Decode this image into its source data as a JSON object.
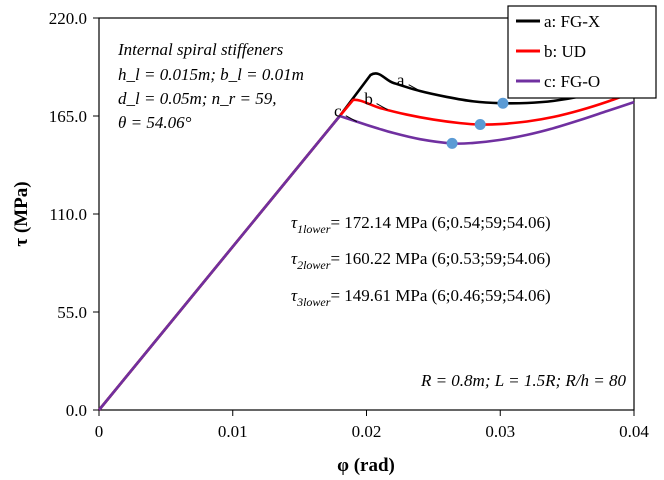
{
  "chart_data": {
    "type": "line",
    "xlabel": "φ (rad)",
    "ylabel": "τ (MPa)",
    "xlim": [
      0,
      0.04
    ],
    "ylim": [
      0,
      220
    ],
    "xticks": [
      "0",
      "0.01",
      "0.02",
      "0.03",
      "0.04"
    ],
    "yticks": [
      "0.0",
      "55.0",
      "110.0",
      "165.0",
      "220.0"
    ],
    "xtick_values": [
      0,
      0.01,
      0.02,
      0.03,
      0.04
    ],
    "ytick_values": [
      0,
      55,
      110,
      165,
      220
    ],
    "grid": false,
    "legend_position": "top-right",
    "legend": [
      "a: FG-X",
      "b: UD",
      "c: FG-O"
    ],
    "series": [
      {
        "name": "a: FG-X",
        "color": "#000000",
        "curve_label": "a",
        "x": [
          0,
          0.018,
          0.0203,
          0.022,
          0.024,
          0.026,
          0.028,
          0.03,
          0.032,
          0.034,
          0.036,
          0.038,
          0.04
        ],
        "y": [
          0,
          165.0,
          188.0,
          183.6,
          179.0,
          175.7,
          173.2,
          172.2,
          172.3,
          173.5,
          176.0,
          179.8,
          184.5
        ],
        "min_point": {
          "x": 0.0302,
          "y": 172.14
        }
      },
      {
        "name": "b: UD",
        "color": "#ff0000",
        "curve_label": "b",
        "x": [
          0,
          0.018,
          0.019,
          0.021,
          0.023,
          0.025,
          0.027,
          0.0285,
          0.03,
          0.032,
          0.034,
          0.036,
          0.038,
          0.04
        ],
        "y": [
          0,
          165.0,
          174.0,
          169.5,
          165.8,
          163.0,
          161.0,
          160.22,
          160.5,
          161.9,
          164.5,
          168.3,
          173.0,
          178.5
        ],
        "min_point": {
          "x": 0.0285,
          "y": 160.22
        }
      },
      {
        "name": "c: FG-O",
        "color": "#7030a0",
        "curve_label": "c",
        "x": [
          0,
          0.018,
          0.02,
          0.022,
          0.024,
          0.0264,
          0.028,
          0.03,
          0.032,
          0.034,
          0.036,
          0.038,
          0.04
        ],
        "y": [
          0,
          165.0,
          160.0,
          155.5,
          152.0,
          149.61,
          149.9,
          151.6,
          154.4,
          158.2,
          162.8,
          167.8,
          172.8
        ],
        "min_point": {
          "x": 0.0264,
          "y": 149.61
        }
      }
    ],
    "marker_color": "#5b9bd5",
    "annotations": {
      "stiffener_title": "Internal spiral stiffeners",
      "params_line1": "h_l = 0.015m; b_l = 0.01m",
      "params_line2": "d_l = 0.05m; n_r = 59,",
      "params_line3": "θ = 54.06°",
      "tau1_symbol": "τ",
      "tau1_sub": "1lower",
      "tau1_value": "= 172.14 MPa (6;0.54;59;54.06)",
      "tau2_symbol": "τ",
      "tau2_sub": "2lower",
      "tau2_value": "= 160.22 MPa (6;0.53;59;54.06)",
      "tau3_symbol": "τ",
      "tau3_sub": "3lower",
      "tau3_value": "= 149.61 MPa (6;0.46;59;54.06)",
      "geometry": "R = 0.8m; L = 1.5R; R/h = 80"
    }
  }
}
